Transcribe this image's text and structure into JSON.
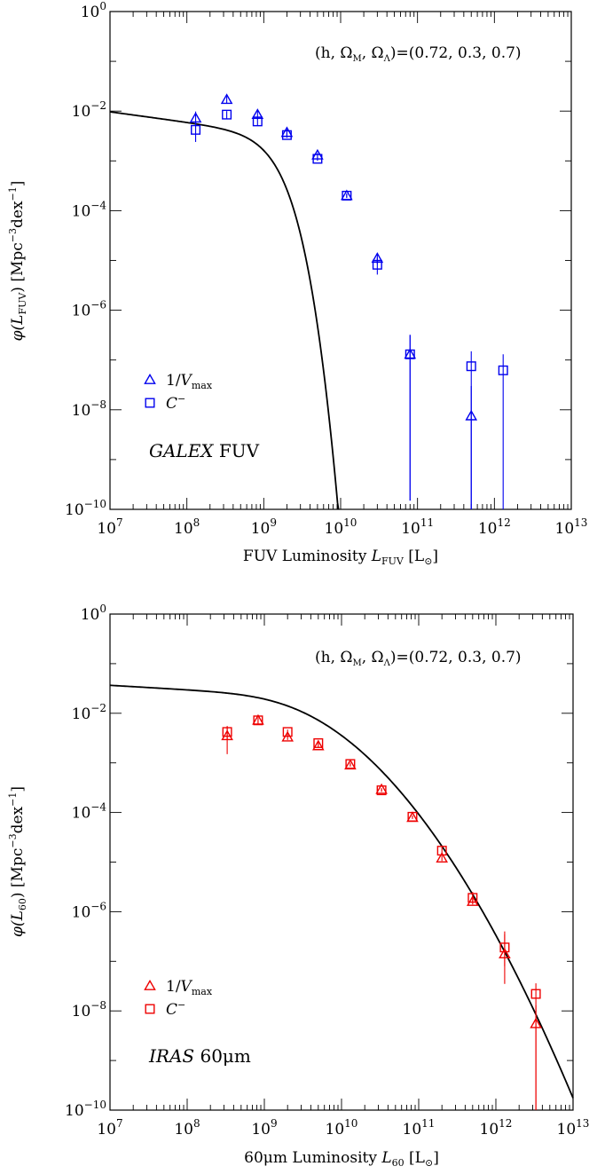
{
  "chart_data": [
    {
      "type": "scatter",
      "title": "",
      "xlabel": "FUV Luminosity",
      "xlabel_symbol": "L",
      "xlabel_sub": "FUV",
      "xlabel_unit_open": " [L",
      "xlabel_unit_close": "]",
      "ylabel_prefix": "φ(",
      "ylabel_symbol": "L",
      "ylabel_sub": "FUV",
      "ylabel_suffix": ") [Mpc",
      "ylabel_exp1": "−3",
      "ylabel_mid": "dex",
      "ylabel_exp2": "−1",
      "ylabel_end": "]",
      "x_scale": "log",
      "y_scale": "log",
      "xlim": [
        10000000,
        10000000000000
      ],
      "ylim": [
        1e-10,
        1
      ],
      "x_tick_exponents": [
        "7",
        "8",
        "9",
        "10",
        "11",
        "12",
        "13"
      ],
      "y_tick_exponents": [
        "0",
        "−2",
        "−4",
        "−6",
        "−8",
        "−10"
      ],
      "tick_base": "10",
      "cosmo_prefix": "(h, Ω",
      "cosmo_sub1": "M",
      "cosmo_mid": ", Ω",
      "cosmo_sub2": "Λ",
      "cosmo_suffix": ")=(0.72, 0.3, 0.7)",
      "label_italic": "GALEX",
      "label_plain": " FUV",
      "color": "#0000ee",
      "legend_position": "lower-left",
      "legend": [
        {
          "marker": "triangle",
          "text": "1/",
          "italic": "V",
          "sub": "max"
        },
        {
          "marker": "square",
          "text": "",
          "italic": "C",
          "sup": "−"
        }
      ],
      "series": [
        {
          "marker": "triangle",
          "points": [
            {
              "x": 130000000,
              "y": 0.0072,
              "lo": 0.0052,
              "hi": 0.0098
            },
            {
              "x": 330000000,
              "y": 0.017,
              "lo": 0.014,
              "hi": 0.02
            },
            {
              "x": 830000000,
              "y": 0.0085,
              "lo": 0.0068,
              "hi": 0.0105
            },
            {
              "x": 2000000000,
              "y": 0.0037,
              "lo": 0.0032,
              "hi": 0.0043
            },
            {
              "x": 5000000000,
              "y": 0.0013,
              "lo": 0.00115,
              "hi": 0.00145
            },
            {
              "x": 12000000000,
              "y": 0.0002,
              "lo": 0.00018,
              "hi": 0.00022
            },
            {
              "x": 30000000000,
              "y": 1.1e-05,
              "lo": 8.5e-06,
              "hi": 1.4e-05
            },
            {
              "x": 80000000000,
              "y": 1.3e-07,
              "lo": 1.5e-10,
              "hi": 3.2e-07
            },
            {
              "x": 500000000000,
              "y": 7.5e-09,
              "lo": 1e-10,
              "hi": 3e-08
            }
          ]
        },
        {
          "marker": "square",
          "points": [
            {
              "x": 130000000,
              "y": 0.0042,
              "lo": 0.0024,
              "hi": 0.006
            },
            {
              "x": 330000000,
              "y": 0.0085,
              "lo": 0.007,
              "hi": 0.01
            },
            {
              "x": 830000000,
              "y": 0.0062,
              "lo": 0.0052,
              "hi": 0.0072
            },
            {
              "x": 2000000000,
              "y": 0.0033,
              "lo": 0.0029,
              "hi": 0.0037
            },
            {
              "x": 5000000000,
              "y": 0.0011,
              "lo": 0.001,
              "hi": 0.0012
            },
            {
              "x": 12000000000,
              "y": 0.0002,
              "lo": 0.00018,
              "hi": 0.00022
            },
            {
              "x": 30000000000,
              "y": 8.2e-06,
              "lo": 5.2e-06,
              "hi": 1.15e-05
            },
            {
              "x": 80000000000,
              "y": 1.3e-07,
              "lo": 1.5e-10,
              "hi": 3.2e-07
            },
            {
              "x": 500000000000,
              "y": 7.5e-08,
              "lo": 1e-10,
              "hi": 1.5e-07
            },
            {
              "x": 1300000000000,
              "y": 6.2e-08,
              "lo": 1e-10,
              "hi": 1.3e-07
            }
          ]
        }
      ],
      "model_curve": {
        "type": "saunders",
        "phi_star": 0.00306,
        "L_star": 2400000000,
        "alpha": 1.21,
        "sigma": 0.118,
        "x_range": [
          10000000,
          60000000000
        ]
      }
    },
    {
      "type": "scatter",
      "title": "",
      "xlabel": "60μm Luminosity",
      "xlabel_symbol": "L",
      "xlabel_sub": "60",
      "xlabel_unit_open": " [L",
      "xlabel_unit_close": "]",
      "ylabel_prefix": "φ(",
      "ylabel_symbol": "L",
      "ylabel_sub": "60",
      "ylabel_suffix": ") [Mpc",
      "ylabel_exp1": "−3",
      "ylabel_mid": "dex",
      "ylabel_exp2": "−1",
      "ylabel_end": "]",
      "x_scale": "log",
      "y_scale": "log",
      "xlim": [
        10000000,
        10000000000000
      ],
      "ylim": [
        1e-10,
        1
      ],
      "x_tick_exponents": [
        "7",
        "8",
        "9",
        "10",
        "11",
        "12",
        "13"
      ],
      "y_tick_exponents": [
        "0",
        "−2",
        "−4",
        "−6",
        "−8",
        "−10"
      ],
      "tick_base": "10",
      "cosmo_prefix": "(h, Ω",
      "cosmo_sub1": "M",
      "cosmo_mid": ", Ω",
      "cosmo_sub2": "Λ",
      "cosmo_suffix": ")=(0.72, 0.3, 0.7)",
      "label_italic": "IRAS",
      "label_plain": " 60μm",
      "color": "#ee0000",
      "legend_position": "lower-left",
      "legend": [
        {
          "marker": "triangle",
          "text": "1/",
          "italic": "V",
          "sub": "max"
        },
        {
          "marker": "square",
          "text": "",
          "italic": "C",
          "sup": "−"
        }
      ],
      "series": [
        {
          "marker": "triangle",
          "points": [
            {
              "x": 330000000,
              "y": 0.0035,
              "lo": 0.0015,
              "hi": 0.0055
            },
            {
              "x": 830000000,
              "y": 0.0072,
              "lo": 0.0062,
              "hi": 0.0082
            },
            {
              "x": 2000000000,
              "y": 0.0033,
              "lo": 0.0029,
              "hi": 0.0037
            },
            {
              "x": 5000000000,
              "y": 0.0022,
              "lo": 0.002,
              "hi": 0.0024
            },
            {
              "x": 13000000000,
              "y": 0.0009,
              "lo": 0.00084,
              "hi": 0.00096
            },
            {
              "x": 33000000000,
              "y": 0.00029,
              "lo": 0.00027,
              "hi": 0.00031
            },
            {
              "x": 83000000000,
              "y": 7.9e-05,
              "lo": 7.4e-05,
              "hi": 8.4e-05
            },
            {
              "x": 200000000000,
              "y": 1.2e-05,
              "lo": 1.05e-05,
              "hi": 1.35e-05
            },
            {
              "x": 500000000000,
              "y": 1.6e-06,
              "lo": 1.4e-06,
              "hi": 1.8e-06
            },
            {
              "x": 1300000000000,
              "y": 1.4e-07,
              "lo": 3.5e-08,
              "hi": 3.5e-07
            },
            {
              "x": 3300000000000,
              "y": 5.5e-09,
              "lo": 1e-10,
              "hi": 1.3e-08
            }
          ]
        },
        {
          "marker": "square",
          "points": [
            {
              "x": 330000000,
              "y": 0.0042,
              "lo": 0.003,
              "hi": 0.0055
            },
            {
              "x": 830000000,
              "y": 0.0072,
              "lo": 0.0062,
              "hi": 0.0082
            },
            {
              "x": 2000000000,
              "y": 0.0042,
              "lo": 0.0037,
              "hi": 0.0047
            },
            {
              "x": 5000000000,
              "y": 0.0025,
              "lo": 0.0023,
              "hi": 0.0027
            },
            {
              "x": 13000000000,
              "y": 0.00095,
              "lo": 0.00089,
              "hi": 0.00101
            },
            {
              "x": 33000000000,
              "y": 0.00028,
              "lo": 0.00026,
              "hi": 0.0003
            },
            {
              "x": 83000000000,
              "y": 8.2e-05,
              "lo": 7.7e-05,
              "hi": 8.7e-05
            },
            {
              "x": 200000000000,
              "y": 1.7e-05,
              "lo": 1.4e-05,
              "hi": 2e-05
            },
            {
              "x": 500000000000,
              "y": 1.9e-06,
              "lo": 1.6e-06,
              "hi": 2.5e-06
            },
            {
              "x": 1300000000000,
              "y": 1.9e-07,
              "lo": 8e-08,
              "hi": 4e-07
            },
            {
              "x": 3300000000000,
              "y": 2.2e-08,
              "lo": 1e-10,
              "hi": 3.6e-08
            }
          ]
        }
      ],
      "model_curve": {
        "type": "saunders",
        "phi_star": 0.0258,
        "L_star": 490000000,
        "alpha": 1.09,
        "sigma": 0.72,
        "x_range": [
          10000000,
          10000000000000
        ]
      }
    }
  ]
}
